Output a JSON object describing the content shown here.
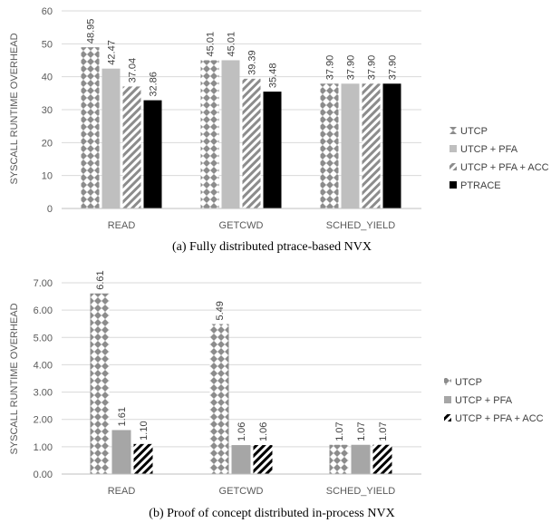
{
  "chart_data": [
    {
      "type": "bar",
      "caption": "(a) Fully distributed ptrace-based NVX",
      "ylabel": "SYSCALL RUNTIME OVERHEAD",
      "ylim": [
        0,
        60
      ],
      "yticks": [
        "0",
        "10",
        "20",
        "30",
        "40",
        "50",
        "60"
      ],
      "grid": true,
      "legend_position": "right",
      "categories": [
        "READ",
        "GETCWD",
        "SCHED_YIELD"
      ],
      "series": [
        {
          "name": "UTCP",
          "values": [
            48.95,
            45.01,
            37.9
          ],
          "labels": [
            "48.95",
            "45.01",
            "37.90"
          ],
          "pattern": "diamond",
          "color": "#8c8c8c"
        },
        {
          "name": "UTCP + PFA",
          "values": [
            42.47,
            45.01,
            37.9
          ],
          "labels": [
            "42.47",
            "45.01",
            "37.90"
          ],
          "pattern": "solid",
          "color": "#bfbfbf"
        },
        {
          "name": "UTCP + PFA + ACC",
          "values": [
            37.04,
            39.39,
            37.9
          ],
          "labels": [
            "37.04",
            "39.39",
            "37.90"
          ],
          "pattern": "stripe",
          "color": "#8c8c8c"
        },
        {
          "name": "PTRACE",
          "values": [
            32.86,
            35.48,
            37.9
          ],
          "labels": [
            "32.86",
            "35.48",
            "37.90"
          ],
          "pattern": "solid",
          "color": "#000000"
        }
      ]
    },
    {
      "type": "bar",
      "caption": "(b) Proof of concept distributed in-process NVX",
      "ylabel": "SYSCALL RUNTIME OVERHEAD",
      "ylim": [
        0,
        7
      ],
      "yticks": [
        "0.00",
        "1.00",
        "2.00",
        "3.00",
        "4.00",
        "5.00",
        "6.00",
        "7.00"
      ],
      "grid": true,
      "legend_position": "right",
      "categories": [
        "READ",
        "GETCWD",
        "SCHED_YIELD"
      ],
      "series": [
        {
          "name": "UTCP",
          "values": [
            6.61,
            5.49,
            1.07
          ],
          "labels": [
            "6.61",
            "5.49",
            "1.07"
          ],
          "pattern": "diamond",
          "color": "#8c8c8c"
        },
        {
          "name": "UTCP + PFA",
          "values": [
            1.61,
            1.06,
            1.07
          ],
          "labels": [
            "1.61",
            "1.06",
            "1.07"
          ],
          "pattern": "solid",
          "color": "#a6a6a6"
        },
        {
          "name": "UTCP + PFA + ACC",
          "values": [
            1.1,
            1.06,
            1.07
          ],
          "labels": [
            "1.10",
            "1.06",
            "1.07"
          ],
          "pattern": "stripe",
          "color": "#000000"
        }
      ]
    }
  ]
}
